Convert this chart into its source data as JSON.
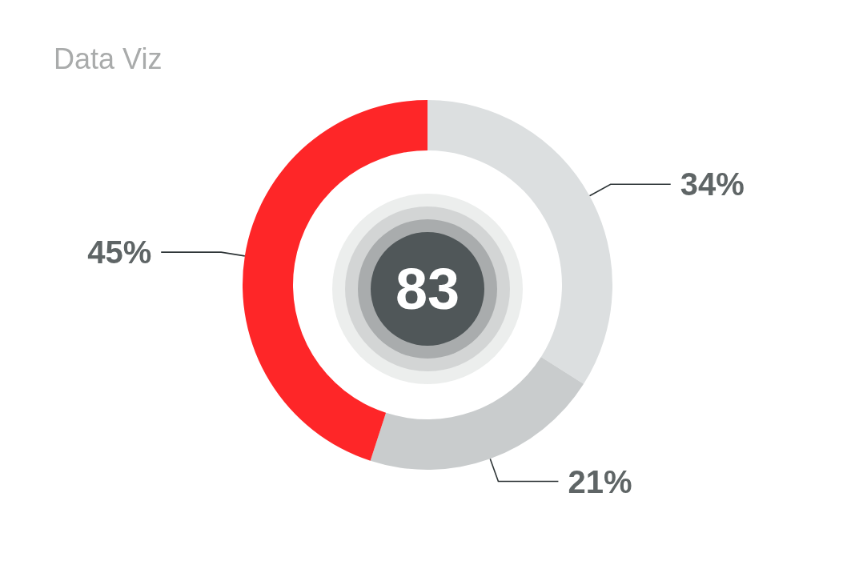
{
  "chart_data": {
    "type": "donut",
    "title": "Data Viz",
    "categories": [
      null,
      null,
      null
    ],
    "values": [
      34,
      21,
      45
    ],
    "colors": [
      "#dcdfe0",
      "#c9cccd",
      "#fe2628"
    ],
    "value_labels": [
      "34%",
      "21%",
      "45%"
    ],
    "annotations": [
      "83"
    ]
  }
}
